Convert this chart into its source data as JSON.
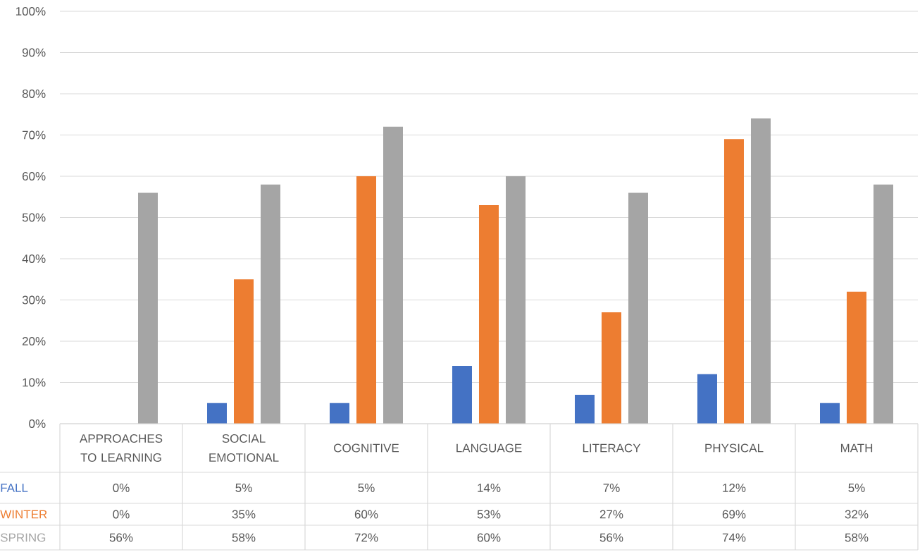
{
  "chart_data": {
    "type": "bar",
    "categories": [
      "APPROACHES TO LEARNING",
      "SOCIAL EMOTIONAL",
      "COGNITIVE",
      "LANGUAGE",
      "LITERACY",
      "PHYSICAL",
      "MATH"
    ],
    "series": [
      {
        "name": "FALL",
        "color": "#4472c4",
        "values": [
          0,
          5,
          5,
          14,
          7,
          12,
          5
        ],
        "value_labels": [
          "0%",
          "5%",
          "5%",
          "14%",
          "7%",
          "12%",
          "5%"
        ]
      },
      {
        "name": "WINTER",
        "color": "#ed7d31",
        "values": [
          0,
          35,
          60,
          53,
          27,
          69,
          32
        ],
        "value_labels": [
          "0%",
          "35%",
          "60%",
          "53%",
          "27%",
          "69%",
          "32%"
        ]
      },
      {
        "name": "SPRING",
        "color": "#a5a5a5",
        "values": [
          56,
          58,
          72,
          60,
          56,
          74,
          58
        ],
        "value_labels": [
          "56%",
          "58%",
          "72%",
          "60%",
          "56%",
          "74%",
          "58%"
        ]
      }
    ],
    "ylim": [
      0,
      100
    ],
    "yticks": [
      {
        "value": 0,
        "label": "0%"
      },
      {
        "value": 10,
        "label": "10%"
      },
      {
        "value": 20,
        "label": "20%"
      },
      {
        "value": 30,
        "label": "30%"
      },
      {
        "value": 40,
        "label": "40%"
      },
      {
        "value": 50,
        "label": "50%"
      },
      {
        "value": 60,
        "label": "60%"
      },
      {
        "value": 70,
        "label": "70%"
      },
      {
        "value": 80,
        "label": "80%"
      },
      {
        "value": 90,
        "label": "90%"
      },
      {
        "value": 100,
        "label": "100%"
      }
    ],
    "grid": "y"
  }
}
